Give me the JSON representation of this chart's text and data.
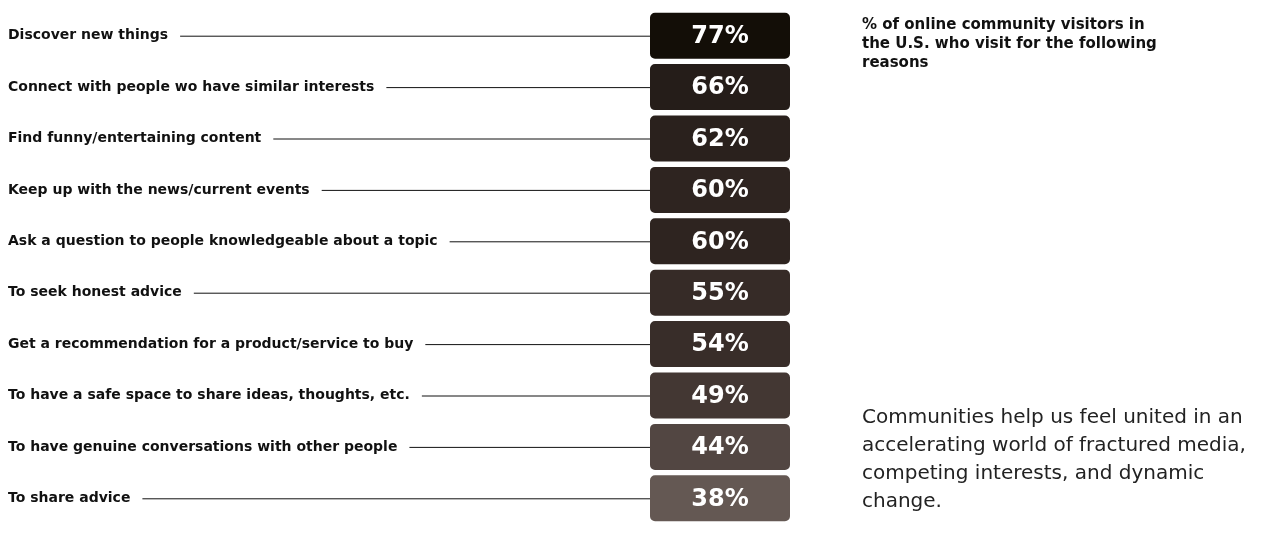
{
  "chart_data": {
    "type": "other",
    "title": "% of online community visitors in the U.S. who visit for the following reasons",
    "categories": [
      "Discover new things",
      "Connect with people wo have similar interests",
      "Find funny/entertaining content",
      "Keep up with the news/current events",
      "Ask a question to people knowledgeable about a topic",
      "To seek honest advice",
      "Get a recommendation for a product/service to buy",
      "To have a safe space to share ideas, thoughts, etc.",
      "To have genuine conversations with other people",
      "To share advice"
    ],
    "values": [
      77,
      66,
      62,
      60,
      60,
      55,
      54,
      49,
      44,
      38
    ],
    "colors": [
      "#130e07",
      "#251d19",
      "#2a211d",
      "#2e2420",
      "#2e2420",
      "#362b27",
      "#382d29",
      "#433733",
      "#524642",
      "#645853"
    ],
    "value_labels": [
      "77%",
      "66%",
      "62%",
      "60%",
      "60%",
      "55%",
      "54%",
      "49%",
      "44%",
      "38%"
    ],
    "annotations": [
      "Communities help us feel united in an accelerating world of fractured media, competing interests, and dynamic change."
    ]
  }
}
